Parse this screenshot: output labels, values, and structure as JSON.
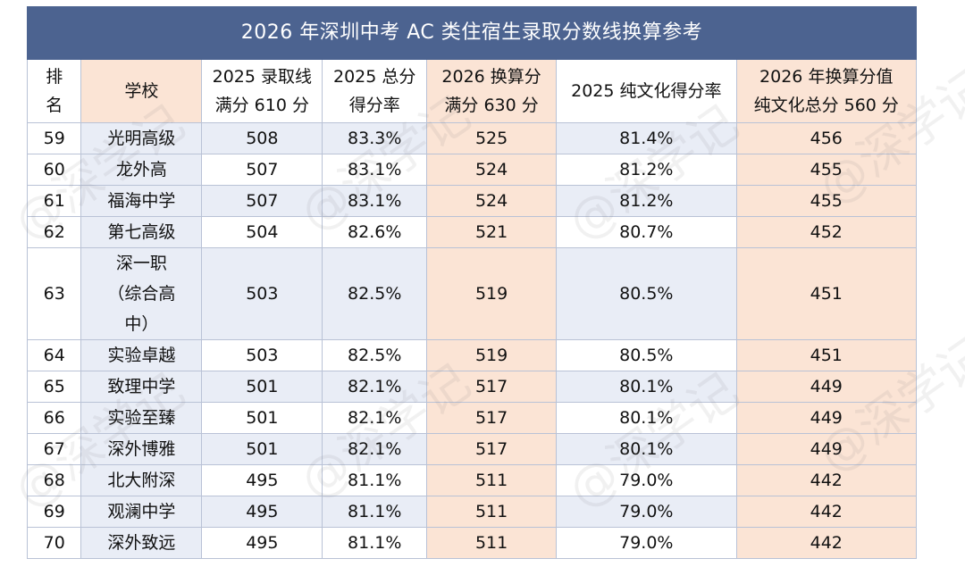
{
  "title": "2026 年深圳中考 AC 类住宿生录取分数线换算参考",
  "headers": {
    "rank": "排\n名",
    "school": "学校",
    "score2025": "2025 录取线\n满分 610 分",
    "rate2025": "2025 总分\n得分率",
    "score2026": "2026 换算分\n满分 630 分",
    "culture_rate2025": "2025 纯文化得分率",
    "culture2026": "2026 年换算分值\n纯文化总分 560 分"
  },
  "rows": [
    {
      "rank": "59",
      "school": "光明高级",
      "score2025": "508",
      "rate2025": "83.3%",
      "score2026": "525",
      "culture_rate2025": "81.4%",
      "culture2026": "456"
    },
    {
      "rank": "60",
      "school": "龙外高",
      "score2025": "507",
      "rate2025": "83.1%",
      "score2026": "524",
      "culture_rate2025": "81.2%",
      "culture2026": "455"
    },
    {
      "rank": "61",
      "school": "福海中学",
      "score2025": "507",
      "rate2025": "83.1%",
      "score2026": "524",
      "culture_rate2025": "81.2%",
      "culture2026": "455"
    },
    {
      "rank": "62",
      "school": "第七高级",
      "score2025": "504",
      "rate2025": "82.6%",
      "score2026": "521",
      "culture_rate2025": "80.7%",
      "culture2026": "452"
    },
    {
      "rank": "63",
      "school": "深一职\n（综合高\n中）",
      "score2025": "503",
      "rate2025": "82.5%",
      "score2026": "519",
      "culture_rate2025": "80.5%",
      "culture2026": "451"
    },
    {
      "rank": "64",
      "school": "实验卓越",
      "score2025": "503",
      "rate2025": "82.5%",
      "score2026": "519",
      "culture_rate2025": "80.5%",
      "culture2026": "451"
    },
    {
      "rank": "65",
      "school": "致理中学",
      "score2025": "501",
      "rate2025": "82.1%",
      "score2026": "517",
      "culture_rate2025": "80.1%",
      "culture2026": "449"
    },
    {
      "rank": "66",
      "school": "实验至臻",
      "score2025": "501",
      "rate2025": "82.1%",
      "score2026": "517",
      "culture_rate2025": "80.1%",
      "culture2026": "449"
    },
    {
      "rank": "67",
      "school": "深外博雅",
      "score2025": "501",
      "rate2025": "82.1%",
      "score2026": "517",
      "culture_rate2025": "80.1%",
      "culture2026": "449"
    },
    {
      "rank": "68",
      "school": "北大附深",
      "score2025": "495",
      "rate2025": "81.1%",
      "score2026": "511",
      "culture_rate2025": "79.0%",
      "culture2026": "442"
    },
    {
      "rank": "69",
      "school": "观澜中学",
      "score2025": "495",
      "rate2025": "81.1%",
      "score2026": "511",
      "culture_rate2025": "79.0%",
      "culture2026": "442"
    },
    {
      "rank": "70",
      "school": "深外致远",
      "score2025": "495",
      "rate2025": "81.1%",
      "score2026": "511",
      "culture_rate2025": "79.0%",
      "culture2026": "442"
    }
  ],
  "watermark": "@深学记",
  "colors": {
    "title_bg": "#4c6390",
    "blue_tint": "#e9edf6",
    "peach_tint": "#fbe4d5",
    "border": "#b9c2d6"
  }
}
